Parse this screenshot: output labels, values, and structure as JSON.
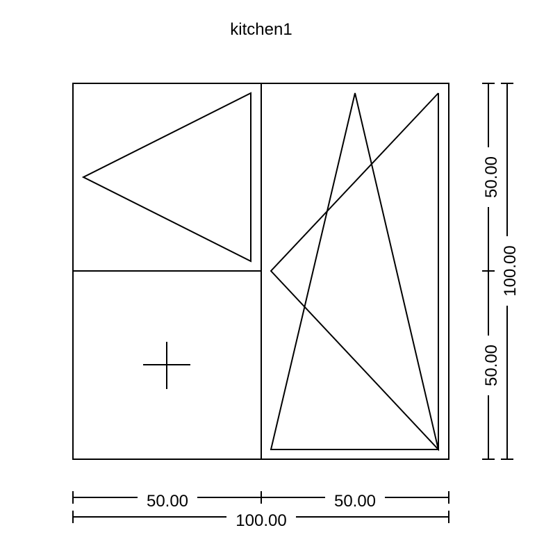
{
  "title": "kitchen1",
  "dimensions": {
    "bottom_left_width": "50.00",
    "bottom_right_width": "50.00",
    "bottom_total_width": "100.00",
    "right_top_height": "50.00",
    "right_bottom_height": "50.00",
    "right_total_height": "100.00"
  },
  "panels": [
    {
      "name": "top-left-sash",
      "opening": "side-hung",
      "hinge": "right"
    },
    {
      "name": "bottom-left-fixed",
      "opening": "fixed"
    },
    {
      "name": "right-sash",
      "opening": "tilt-and-turn"
    }
  ]
}
